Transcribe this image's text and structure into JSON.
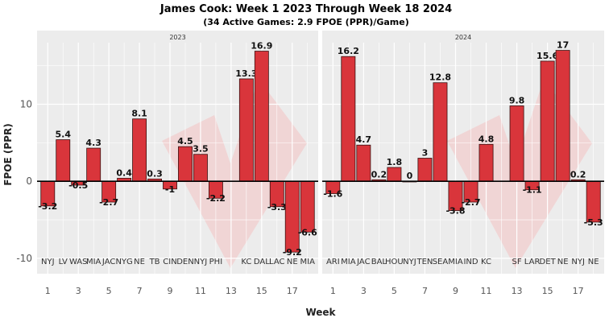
{
  "colors": {
    "bar": "#d9353b",
    "bar_stroke": "#3a1010",
    "panel": "#ececec",
    "grid": "#ffffff",
    "watermark": "#d7d9de",
    "watermark_red": "#f3c9c9"
  },
  "chart_data": {
    "type": "bar",
    "title": "James Cook: Week 1 2023 Through Week 18 2024",
    "subtitle": "(34 Active Games: 2.9 FPOE (PPR)/Game)",
    "xlabel": "Week",
    "ylabel": "FPOE (PPR)",
    "ylim": [
      -12,
      18
    ],
    "yticks": [
      -10,
      0,
      10
    ],
    "xlim": [
      0.3,
      18.7
    ],
    "xticks": [
      1,
      3,
      5,
      7,
      9,
      11,
      13,
      15,
      17
    ],
    "grid": true,
    "legend": "none",
    "facets": [
      {
        "label": "2023",
        "bars": [
          {
            "week": 1,
            "opponent": "NYJ",
            "value": -3.2
          },
          {
            "week": 2,
            "opponent": "LV",
            "value": 5.4
          },
          {
            "week": 3,
            "opponent": "WAS",
            "value": -0.5
          },
          {
            "week": 4,
            "opponent": "MIA",
            "value": 4.3
          },
          {
            "week": 5,
            "opponent": "JAC",
            "value": -2.7
          },
          {
            "week": 6,
            "opponent": "NYG",
            "value": 0.4
          },
          {
            "week": 7,
            "opponent": "NE",
            "value": 8.1
          },
          {
            "week": 8,
            "opponent": "TB",
            "value": 0.3
          },
          {
            "week": 9,
            "opponent": "CIN",
            "value": -1
          },
          {
            "week": 10,
            "opponent": "DEN",
            "value": 4.5
          },
          {
            "week": 11,
            "opponent": "NYJ",
            "value": 3.5
          },
          {
            "week": 12,
            "opponent": "PHI",
            "value": -2.2
          },
          {
            "week": 14,
            "opponent": "KC",
            "value": 13.3
          },
          {
            "week": 15,
            "opponent": "DAL",
            "value": 16.9
          },
          {
            "week": 16,
            "opponent": "LAC",
            "value": -3.3
          },
          {
            "week": 17,
            "opponent": "NE",
            "value": -9.2
          },
          {
            "week": 18,
            "opponent": "MIA",
            "value": -6.6
          }
        ]
      },
      {
        "label": "2024",
        "bars": [
          {
            "week": 1,
            "opponent": "ARI",
            "value": -1.6
          },
          {
            "week": 2,
            "opponent": "MIA",
            "value": 16.2
          },
          {
            "week": 3,
            "opponent": "JAC",
            "value": 4.7
          },
          {
            "week": 4,
            "opponent": "BAL",
            "value": 0.2
          },
          {
            "week": 5,
            "opponent": "HOU",
            "value": 1.8
          },
          {
            "week": 6,
            "opponent": "NYJ",
            "value": 0
          },
          {
            "week": 7,
            "opponent": "TEN",
            "value": 3
          },
          {
            "week": 8,
            "opponent": "SEA",
            "value": 12.8
          },
          {
            "week": 9,
            "opponent": "MIA",
            "value": -3.8
          },
          {
            "week": 10,
            "opponent": "IND",
            "value": -2.7
          },
          {
            "week": 11,
            "opponent": "KC",
            "value": 4.8
          },
          {
            "week": 13,
            "opponent": "SF",
            "value": 9.8
          },
          {
            "week": 14,
            "opponent": "LAR",
            "value": -1.1
          },
          {
            "week": 15,
            "opponent": "DET",
            "value": 15.6
          },
          {
            "week": 16,
            "opponent": "NE",
            "value": 17
          },
          {
            "week": 17,
            "opponent": "NYJ",
            "value": 0.2
          },
          {
            "week": 18,
            "opponent": "NE",
            "value": -5.3
          }
        ]
      }
    ]
  }
}
